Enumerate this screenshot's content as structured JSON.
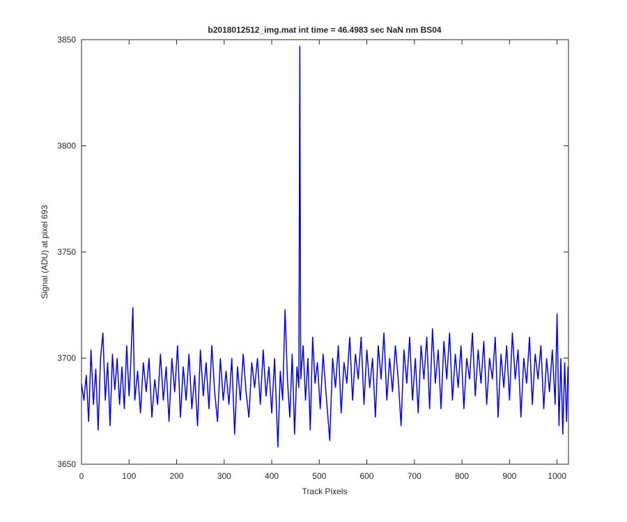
{
  "chart_data": {
    "type": "line",
    "title": "b2018012512_img.mat int time = 46.4983 sec  NaN nm BS04",
    "xlabel": "Track Pixels",
    "ylabel": "Signal (ADU) at pixel 693",
    "color": "#0000ff",
    "x": [
      0,
      5,
      10,
      15,
      20,
      25,
      30,
      35,
      40,
      45,
      50,
      55,
      60,
      65,
      70,
      75,
      80,
      85,
      90,
      95,
      100,
      104,
      108,
      112,
      118,
      124,
      130,
      136,
      142,
      148,
      154,
      160,
      166,
      172,
      178,
      184,
      190,
      196,
      202,
      208,
      214,
      220,
      226,
      232,
      238,
      244,
      250,
      256,
      262,
      268,
      274,
      280,
      286,
      292,
      298,
      304,
      310,
      316,
      322,
      328,
      334,
      340,
      346,
      352,
      358,
      364,
      370,
      376,
      382,
      388,
      394,
      400,
      406,
      413,
      418,
      423,
      428,
      433,
      438,
      443,
      448,
      453,
      457,
      459,
      461,
      466,
      471,
      476,
      481,
      486,
      491,
      496,
      502,
      508,
      514,
      522,
      528,
      534,
      540,
      546,
      552,
      558,
      564,
      570,
      576,
      582,
      588,
      594,
      600,
      606,
      612,
      618,
      624,
      630,
      636,
      642,
      648,
      654,
      660,
      666,
      672,
      678,
      684,
      690,
      696,
      702,
      708,
      714,
      720,
      726,
      732,
      738,
      744,
      750,
      756,
      762,
      768,
      774,
      780,
      786,
      792,
      798,
      804,
      810,
      816,
      822,
      828,
      834,
      840,
      846,
      852,
      858,
      864,
      870,
      876,
      882,
      888,
      894,
      900,
      906,
      912,
      918,
      924,
      930,
      936,
      942,
      948,
      954,
      960,
      966,
      972,
      978,
      984,
      990,
      996,
      1000,
      1004,
      1008,
      1012,
      1016,
      1020,
      1023
    ],
    "values": [
      3688,
      3680,
      3692,
      3670,
      3704,
      3678,
      3695,
      3666,
      3700,
      3712,
      3680,
      3698,
      3668,
      3702,
      3685,
      3700,
      3678,
      3696,
      3676,
      3706,
      3682,
      3700,
      3724,
      3680,
      3694,
      3674,
      3698,
      3684,
      3700,
      3672,
      3690,
      3678,
      3702,
      3680,
      3696,
      3670,
      3700,
      3684,
      3706,
      3672,
      3696,
      3680,
      3702,
      3676,
      3692,
      3668,
      3704,
      3682,
      3698,
      3676,
      3706,
      3684,
      3670,
      3700,
      3680,
      3694,
      3678,
      3700,
      3664,
      3696,
      3680,
      3702,
      3684,
      3672,
      3698,
      3686,
      3700,
      3678,
      3704,
      3682,
      3696,
      3674,
      3700,
      3658,
      3694,
      3680,
      3723,
      3690,
      3672,
      3702,
      3664,
      3696,
      3686,
      3847,
      3690,
      3706,
      3680,
      3700,
      3666,
      3710,
      3688,
      3698,
      3676,
      3702,
      3684,
      3661,
      3700,
      3686,
      3706,
      3674,
      3698,
      3688,
      3710,
      3680,
      3702,
      3690,
      3710,
      3678,
      3704,
      3686,
      3700,
      3672,
      3706,
      3690,
      3712,
      3680,
      3700,
      3684,
      3706,
      3690,
      3668,
      3704,
      3688,
      3710,
      3680,
      3700,
      3674,
      3706,
      3690,
      3710,
      3676,
      3714,
      3688,
      3704,
      3676,
      3708,
      3690,
      3712,
      3680,
      3702,
      3686,
      3706,
      3676,
      3700,
      3690,
      3712,
      3682,
      3704,
      3688,
      3708,
      3678,
      3700,
      3690,
      3710,
      3672,
      3702,
      3686,
      3706,
      3680,
      3712,
      3690,
      3704,
      3672,
      3700,
      3688,
      3710,
      3678,
      3702,
      3690,
      3706,
      3676,
      3700,
      3684,
      3704,
      3678,
      3721,
      3668,
      3700,
      3664,
      3698,
      3670,
      3696
    ],
    "xlim": [
      0,
      1024
    ],
    "ylim": [
      3650,
      3850
    ],
    "xticks": [
      0,
      100,
      200,
      300,
      400,
      500,
      600,
      700,
      800,
      900,
      1000
    ],
    "yticks": [
      3650,
      3700,
      3750,
      3800,
      3850
    ],
    "grid": false
  }
}
